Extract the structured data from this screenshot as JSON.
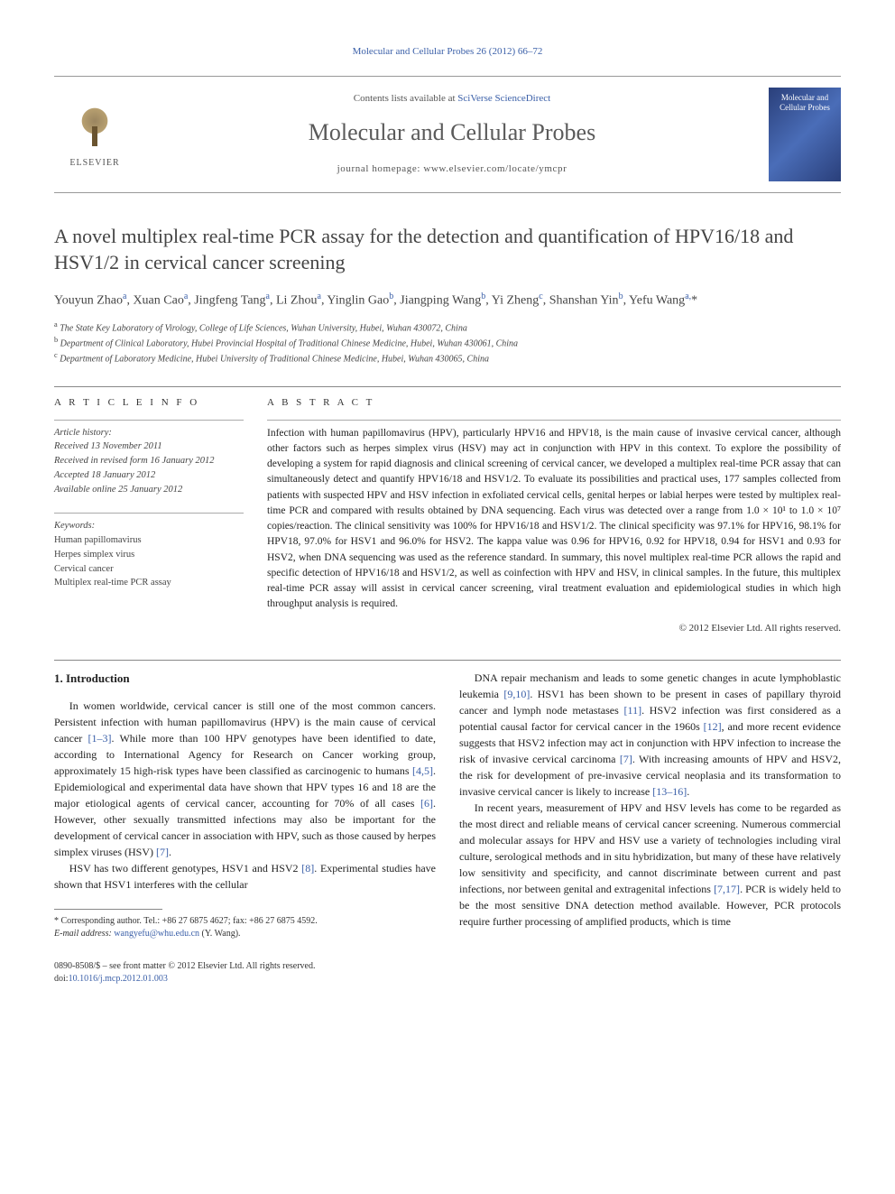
{
  "journal_ref": "Molecular and Cellular Probes 26 (2012) 66–72",
  "masthead": {
    "publisher_label": "ELSEVIER",
    "contents_prefix": "Contents lists available at ",
    "contents_link": "SciVerse ScienceDirect",
    "journal_name": "Molecular and Cellular Probes",
    "homepage_prefix": "journal homepage: ",
    "homepage_url": "www.elsevier.com/locate/ymcpr",
    "cover_text": "Molecular and Cellular Probes"
  },
  "title": "A novel multiplex real-time PCR assay for the detection and quantification of HPV16/18 and HSV1/2 in cervical cancer screening",
  "authors_html": "Youyun Zhao<sup>a</sup>, Xuan Cao<sup>a</sup>, Jingfeng Tang<sup>a</sup>, Li Zhou<sup>a</sup>, Yinglin Gao<sup>b</sup>, Jiangping Wang<sup>b</sup>, Yi Zheng<sup>c</sup>, Shanshan Yin<sup>b</sup>, Yefu Wang<sup>a,</sup>*",
  "affiliations": [
    "a The State Key Laboratory of Virology, College of Life Sciences, Wuhan University, Hubei, Wuhan 430072, China",
    "b Department of Clinical Laboratory, Hubei Provincial Hospital of Traditional Chinese Medicine, Hubei, Wuhan 430061, China",
    "c Department of Laboratory Medicine, Hubei University of Traditional Chinese Medicine, Hubei, Wuhan 430065, China"
  ],
  "article_info": {
    "label": "A R T I C L E   I N F O",
    "history_head": "Article history:",
    "received": "Received 13 November 2011",
    "revised": "Received in revised form 16 January 2012",
    "accepted": "Accepted 18 January 2012",
    "online": "Available online 25 January 2012",
    "keywords_head": "Keywords:",
    "keywords": [
      "Human papillomavirus",
      "Herpes simplex virus",
      "Cervical cancer",
      "Multiplex real-time PCR assay"
    ]
  },
  "abstract": {
    "label": "A B S T R A C T",
    "text": "Infection with human papillomavirus (HPV), particularly HPV16 and HPV18, is the main cause of invasive cervical cancer, although other factors such as herpes simplex virus (HSV) may act in conjunction with HPV in this context. To explore the possibility of developing a system for rapid diagnosis and clinical screening of cervical cancer, we developed a multiplex real-time PCR assay that can simultaneously detect and quantify HPV16/18 and HSV1/2. To evaluate its possibilities and practical uses, 177 samples collected from patients with suspected HPV and HSV infection in exfoliated cervical cells, genital herpes or labial herpes were tested by multiplex real-time PCR and compared with results obtained by DNA sequencing. Each virus was detected over a range from 1.0 × 10¹ to 1.0 × 10⁷ copies/reaction. The clinical sensitivity was 100% for HPV16/18 and HSV1/2. The clinical specificity was 97.1% for HPV16, 98.1% for HPV18, 97.0% for HSV1 and 96.0% for HSV2. The kappa value was 0.96 for HPV16, 0.92 for HPV18, 0.94 for HSV1 and 0.93 for HSV2, when DNA sequencing was used as the reference standard. In summary, this novel multiplex real-time PCR allows the rapid and specific detection of HPV16/18 and HSV1/2, as well as coinfection with HPV and HSV, in clinical samples. In the future, this multiplex real-time PCR assay will assist in cervical cancer screening, viral treatment evaluation and epidemiological studies in which high throughput analysis is required.",
    "copyright": "© 2012 Elsevier Ltd. All rights reserved."
  },
  "body": {
    "section_heading": "1. Introduction",
    "left_paras": [
      "In women worldwide, cervical cancer is still one of the most common cancers. Persistent infection with human papillomavirus (HPV) is the main cause of cervical cancer [1–3]. While more than 100 HPV genotypes have been identified to date, according to International Agency for Research on Cancer working group, approximately 15 high-risk types have been classified as carcinogenic to humans [4,5]. Epidemiological and experimental data have shown that HPV types 16 and 18 are the major etiological agents of cervical cancer, accounting for 70% of all cases [6]. However, other sexually transmitted infections may also be important for the development of cervical cancer in association with HPV, such as those caused by herpes simplex viruses (HSV) [7].",
      "HSV has two different genotypes, HSV1 and HSV2 [8]. Experimental studies have shown that HSV1 interferes with the cellular"
    ],
    "right_paras": [
      "DNA repair mechanism and leads to some genetic changes in acute lymphoblastic leukemia [9,10]. HSV1 has been shown to be present in cases of papillary thyroid cancer and lymph node metastases [11]. HSV2 infection was first considered as a potential causal factor for cervical cancer in the 1960s [12], and more recent evidence suggests that HSV2 infection may act in conjunction with HPV infection to increase the risk of invasive cervical carcinoma [7]. With increasing amounts of HPV and HSV2, the risk for development of pre-invasive cervical neoplasia and its transformation to invasive cervical cancer is likely to increase [13–16].",
      "In recent years, measurement of HPV and HSV levels has come to be regarded as the most direct and reliable means of cervical cancer screening. Numerous commercial and molecular assays for HPV and HSV use a variety of technologies including viral culture, serological methods and in situ hybridization, but many of these have relatively low sensitivity and specificity, and cannot discriminate between current and past infections, nor between genital and extragenital infections [7,17]. PCR is widely held to be the most sensitive DNA detection method available. However, PCR protocols require further processing of amplified products, which is time"
    ]
  },
  "footnote": {
    "corr_label": "* Corresponding author. Tel.: +86 27 6875 4627; fax: +86 27 6875 4592.",
    "email_label": "E-mail address: ",
    "email": "wangyefu@whu.edu.cn",
    "email_suffix": " (Y. Wang)."
  },
  "footer": {
    "line1": "0890-8508/$ – see front matter © 2012 Elsevier Ltd. All rights reserved.",
    "doi_prefix": "doi:",
    "doi": "10.1016/j.mcp.2012.01.003"
  },
  "colors": {
    "link": "#3a5fa8",
    "text": "#1a1a1a",
    "heading": "#444",
    "rule": "#888"
  }
}
